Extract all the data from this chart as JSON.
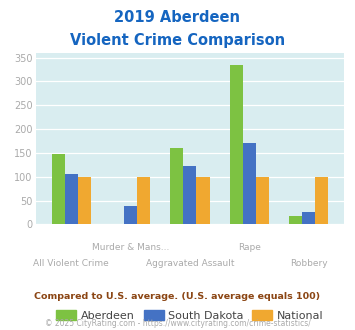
{
  "title_line1": "2019 Aberdeen",
  "title_line2": "Violent Crime Comparison",
  "categories": [
    "All Violent Crime",
    "Murder & Mans...",
    "Aggravated Assault",
    "Rape",
    "Robbery"
  ],
  "label_row1": [
    "",
    "Murder & Mans...",
    "",
    "Rape",
    ""
  ],
  "label_row2": [
    "All Violent Crime",
    "",
    "Aggravated Assault",
    "",
    "Robbery"
  ],
  "series": {
    "Aberdeen": [
      148,
      0,
      160,
      335,
      17
    ],
    "South Dakota": [
      105,
      38,
      122,
      170,
      27
    ],
    "National": [
      100,
      100,
      100,
      100,
      100
    ]
  },
  "colors": {
    "Aberdeen": "#7dc242",
    "South Dakota": "#4472c4",
    "National": "#f0a830"
  },
  "ylim": [
    0,
    360
  ],
  "yticks": [
    0,
    50,
    100,
    150,
    200,
    250,
    300,
    350
  ],
  "bg_color": "#d9edf0",
  "note_text": "Compared to U.S. average. (U.S. average equals 100)",
  "copyright_text": "© 2025 CityRating.com - https://www.cityrating.com/crime-statistics/",
  "title_color": "#1565c0",
  "note_color": "#8b4513",
  "copyright_color": "#aaaaaa",
  "tick_label_color": "#aaaaaa",
  "legend_label_color": "#444444"
}
